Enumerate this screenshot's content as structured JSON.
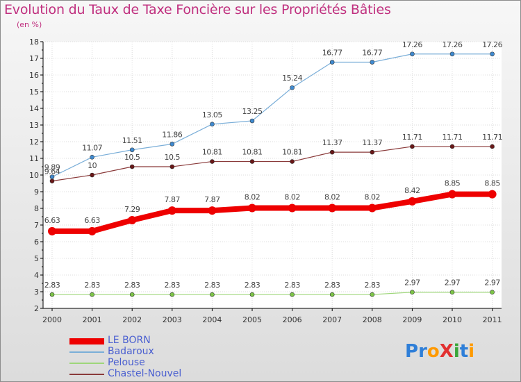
{
  "title": "Evolution du Taux de Taxe Foncière sur les Propriétés Bâties",
  "unit_label": "(en %)",
  "logo": {
    "text": "ProXiti",
    "letters": [
      "P",
      "r",
      "o",
      "X",
      "i",
      "t",
      "i"
    ],
    "colors": [
      "#2f7fd8",
      "#2f7fd8",
      "#ff9a00",
      "#e23030",
      "#3aa63a",
      "#2f7fd8",
      "#ff9a00"
    ]
  },
  "chart_data": {
    "type": "line",
    "title": "Evolution du Taux de Taxe Foncière sur les Propriétés Bâties",
    "ylabel": "(en %)",
    "xlabel": "",
    "categories": [
      "2000",
      "2001",
      "2002",
      "2003",
      "2004",
      "2005",
      "2006",
      "2007",
      "2008",
      "2009",
      "2010",
      "2011"
    ],
    "ylim": [
      2,
      18
    ],
    "yticks": [
      2,
      3,
      4,
      5,
      6,
      7,
      8,
      9,
      10,
      11,
      12,
      13,
      14,
      15,
      16,
      17,
      18
    ],
    "grid": true,
    "legend_position": "bottom-left",
    "series": [
      {
        "name": "LE BORN",
        "color": "#ee0000",
        "point_color": "#ee0000",
        "values": [
          6.63,
          6.63,
          7.29,
          7.87,
          7.87,
          8.02,
          8.02,
          8.02,
          8.02,
          8.42,
          8.85,
          8.85
        ],
        "labels": [
          "6.63",
          "6.63",
          "7.29",
          "7.87",
          "7.87",
          "8.02",
          "8.02",
          "8.02",
          "8.02",
          "8.42",
          "8.85",
          "8.85"
        ]
      },
      {
        "name": "Badaroux",
        "color": "#7aaed8",
        "point_color": "#3f8ad0",
        "values": [
          9.89,
          11.07,
          11.51,
          11.86,
          13.05,
          13.25,
          15.24,
          16.77,
          16.77,
          17.26,
          17.26,
          17.26
        ],
        "labels": [
          "9.89",
          "11.07",
          "11.51",
          "11.86",
          "13.05",
          "13.25",
          "15.24",
          "16.77",
          "16.77",
          "17.26",
          "17.26",
          "17.26"
        ]
      },
      {
        "name": "Pelouse",
        "color": "#9ed67a",
        "point_color": "#7cc447",
        "values": [
          2.83,
          2.83,
          2.83,
          2.83,
          2.83,
          2.83,
          2.83,
          2.83,
          2.83,
          2.97,
          2.97,
          2.97
        ],
        "labels": [
          "2.83",
          "2.83",
          "2.83",
          "2.83",
          "2.83",
          "2.83",
          "2.83",
          "2.83",
          "2.83",
          "2.97",
          "2.97",
          "2.97"
        ]
      },
      {
        "name": "Chastel-Nouvel",
        "color": "#8a3a3a",
        "point_color": "#6a1818",
        "values": [
          9.64,
          10,
          10.5,
          10.5,
          10.81,
          10.81,
          10.81,
          11.37,
          11.37,
          11.71,
          11.71,
          11.71
        ],
        "labels": [
          "9.64",
          "10",
          "10.5",
          "10.5",
          "10.81",
          "10.81",
          "10.81",
          "11.37",
          "11.37",
          "11.71",
          "11.71",
          "11.71"
        ]
      }
    ]
  }
}
